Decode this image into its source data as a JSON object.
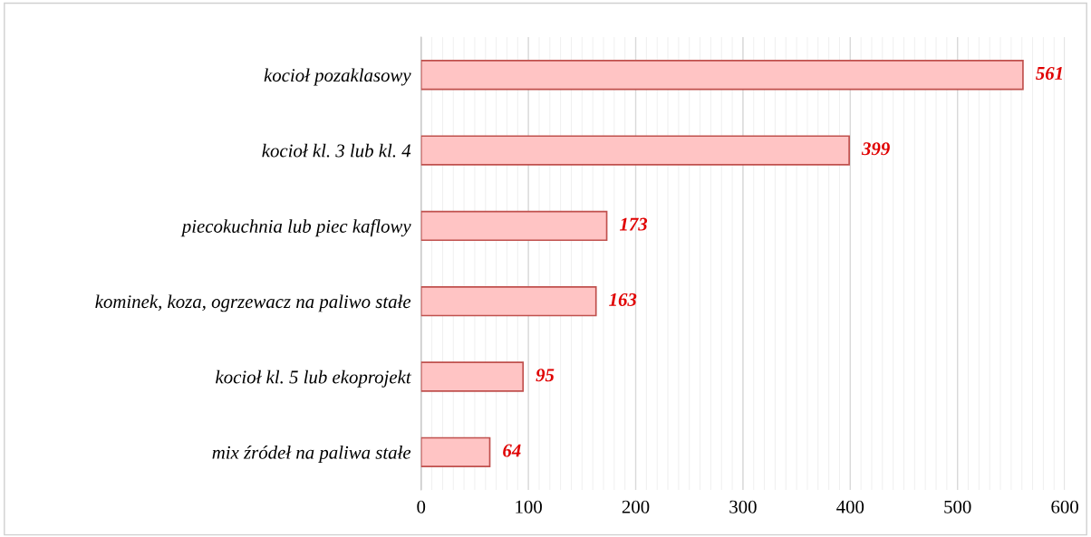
{
  "chart_data": {
    "type": "bar",
    "orientation": "horizontal",
    "categories": [
      "kocioł pozaklasowy",
      "kocioł kl. 3 lub kl. 4",
      "piecokuchnia lub piec kaflowy",
      "kominek, koza, ogrzewacz na paliwo stałe",
      "kocioł kl. 5 lub ekoprojekt",
      "mix źródeł na paliwa stałe"
    ],
    "values": [
      561,
      399,
      173,
      163,
      95,
      64
    ],
    "color": "#ffc4c4",
    "xlim": [
      0,
      600
    ],
    "xticks": [
      0,
      100,
      200,
      300,
      400,
      500,
      600
    ],
    "grid": "x",
    "data_labels": true
  }
}
